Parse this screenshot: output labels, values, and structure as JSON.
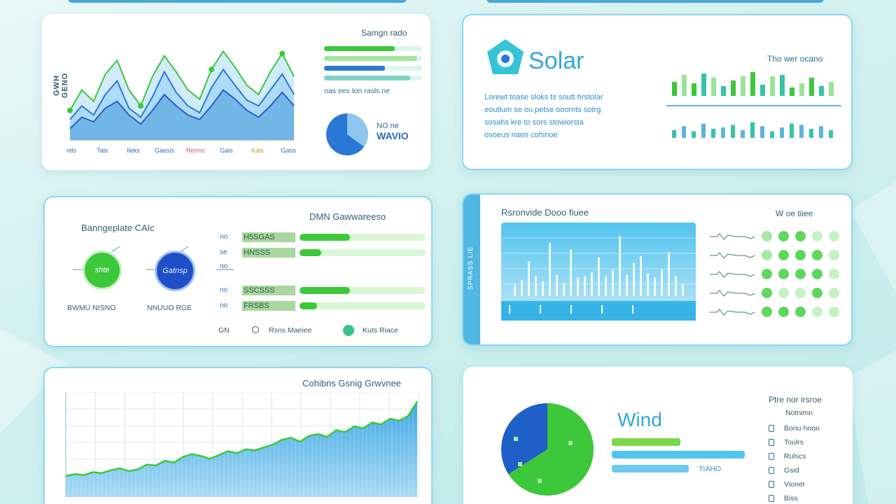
{
  "colors": {
    "green": "#3cc83a",
    "blue": "#2a78d6",
    "cyan": "#52c4ef",
    "teal": "#37c3a8",
    "light_green": "#c6f1c2",
    "border": "#8fd7ef"
  },
  "card1": {
    "y_label": "GWH GENO",
    "title": "Samgn rado",
    "x_ticks": [
      "ntls",
      "Tals",
      "Ileks",
      "Gaesis",
      "Rerms",
      "Gals",
      "Kals",
      "Gass"
    ],
    "caption": "nas ees ton rasls ne",
    "pie_line1": "NO ne",
    "pie_line2": "WAVIO",
    "progress": [
      0.72,
      0.95,
      0.62,
      0.88
    ],
    "chart_data": {
      "type": "area",
      "series": [
        {
          "values": [
            18,
            30,
            22,
            40,
            52,
            28,
            20,
            38,
            60,
            42,
            30,
            24,
            46,
            62,
            48,
            35,
            30,
            44,
            58,
            40
          ]
        },
        {
          "values": [
            10,
            20,
            16,
            28,
            34,
            22,
            14,
            26,
            40,
            30,
            22,
            18,
            30,
            44,
            36,
            26,
            20,
            30,
            42,
            30
          ]
        },
        {
          "values": [
            26,
            44,
            34,
            58,
            70,
            44,
            30,
            56,
            74,
            60,
            44,
            36,
            62,
            78,
            64,
            48,
            40,
            60,
            76,
            56
          ]
        }
      ],
      "pie_values": [
        35,
        65
      ]
    }
  },
  "card2": {
    "title": "Solar",
    "subtitle": "Tho wer ocano",
    "desc_lines": [
      "Lorewt toase sloks ts soutt hrstolar",
      "eoutlum se ou petse ooornts sotrg",
      "sosahs kre to sors stowiorsta",
      "osoeus naen cohinoe"
    ],
    "chart_data": {
      "type": "bar",
      "top_values": [
        20,
        30,
        18,
        32,
        26,
        14,
        22,
        28,
        34,
        16,
        28,
        30,
        12,
        18,
        26,
        14,
        20
      ],
      "bottom_values": [
        12,
        18,
        10,
        22,
        14,
        16,
        20,
        12,
        24,
        18,
        10,
        16,
        22,
        20,
        14,
        18,
        12
      ]
    }
  },
  "card3": {
    "left_title": "Banngeplate CAIc",
    "right_title": "DMN Gawwareeso",
    "circle1_label": "shte",
    "circle2_label": "Gatnsp",
    "circle1_caption": "BWMU NISNO",
    "circle2_caption": "NNUUO RGE",
    "rows": [
      {
        "key": "no",
        "value": "H5SGAS",
        "fill": 0.4
      },
      {
        "key": "se",
        "value": "HNSSS",
        "fill": 0.17
      },
      {
        "key": "no",
        "value": "",
        "fill": 0
      },
      {
        "key": "no",
        "value": "SSCSSS",
        "fill": 0.4
      },
      {
        "key": "no",
        "value": "FRSBS",
        "fill": 0.14
      }
    ],
    "legend_prefix": "GN",
    "legend1": "Rsns Maeiee",
    "legend2": "Kuts Riace"
  },
  "card4": {
    "title": "Rsronvide Dooo fiuee",
    "right_title": "W oe tiiee",
    "vertical_label": "SPRASS LIE",
    "dot_rows": [
      [
        2,
        1,
        1,
        0,
        0
      ],
      [
        2,
        1,
        1,
        1,
        0
      ],
      [
        1,
        1,
        1,
        1,
        0
      ],
      [
        1,
        0,
        0,
        1,
        0
      ],
      [
        1,
        1,
        1,
        0,
        0
      ]
    ],
    "chart_data": {
      "type": "bar",
      "values": [
        16,
        24,
        52,
        30,
        22,
        80,
        32,
        20,
        70,
        28,
        30,
        36,
        58,
        30,
        40,
        90,
        32,
        50,
        60,
        34,
        28,
        40,
        66,
        30,
        18
      ]
    }
  },
  "card5": {
    "title": "Cohibns Gsnig Grwvnee",
    "chart_data": {
      "type": "area",
      "values": [
        22,
        24,
        23,
        26,
        25,
        28,
        30,
        27,
        29,
        34,
        33,
        38,
        36,
        42,
        45,
        43,
        40,
        44,
        48,
        46,
        50,
        49,
        52,
        55,
        60,
        62,
        58,
        64,
        66,
        63,
        70,
        68,
        74,
        72,
        78,
        76,
        82,
        80,
        85,
        100
      ]
    }
  },
  "card6": {
    "title": "Wind",
    "bar_label": "TIAHO",
    "legend_title": "Ptre nor irsroe",
    "legend_subtitle": "Notnimn",
    "legend_items": [
      "Bonu hnon",
      "Toulrs",
      "Rulscs",
      "Gsid",
      "Vioner",
      "Biss"
    ],
    "bars": [
      0.49,
      0.95,
      0.55
    ],
    "chart_data": {
      "type": "pie",
      "values": [
        66,
        34
      ]
    }
  }
}
